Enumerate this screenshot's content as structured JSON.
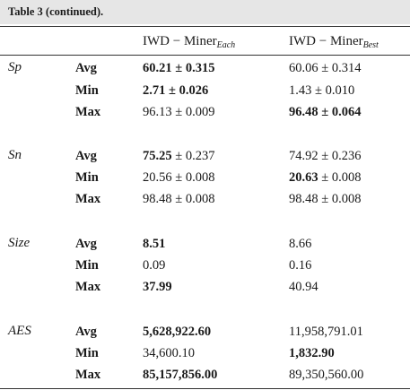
{
  "caption": "Table 3  (continued).",
  "columns": {
    "each_prefix": "IWD − Miner",
    "each_sub": "Each",
    "best_prefix": "IWD − Miner",
    "best_sub": "Best"
  },
  "groups": [
    {
      "metric": "Sp",
      "rows": [
        {
          "stat": "Avg",
          "each": "60.21 ± 0.315",
          "best": "60.06 ± 0.314"
        },
        {
          "stat": "Min",
          "each": "2.71 ± 0.026",
          "best": "1.43 ± 0.010"
        },
        {
          "stat": "Max",
          "each": "96.13 ± 0.009",
          "best": "96.48 ± 0.064"
        }
      ]
    },
    {
      "metric": "Sn",
      "rows": [
        {
          "stat": "Avg",
          "each_main": "75.25",
          "each_rest": " ± 0.237",
          "best": "74.92 ± 0.236"
        },
        {
          "stat": "Min",
          "each": "20.56 ± 0.008",
          "best_main": "20.63",
          "best_rest": " ± 0.008"
        },
        {
          "stat": "Max",
          "each": "98.48 ± 0.008",
          "best": "98.48 ± 0.008"
        }
      ]
    },
    {
      "metric": "Size",
      "rows": [
        {
          "stat": "Avg",
          "each": "8.51",
          "best": "8.66"
        },
        {
          "stat": "Min",
          "each": "0.09",
          "best": "0.16"
        },
        {
          "stat": "Max",
          "each": "37.99",
          "best": "40.94"
        }
      ]
    },
    {
      "metric": "AES",
      "rows": [
        {
          "stat": "Avg",
          "each": "5,628,922.60",
          "best": "11,958,791.01"
        },
        {
          "stat": "Min",
          "each": "34,600.10",
          "best": "1,832.90"
        },
        {
          "stat": "Max",
          "each": "85,157,856.00",
          "best": "89,350,560.00"
        }
      ]
    }
  ]
}
